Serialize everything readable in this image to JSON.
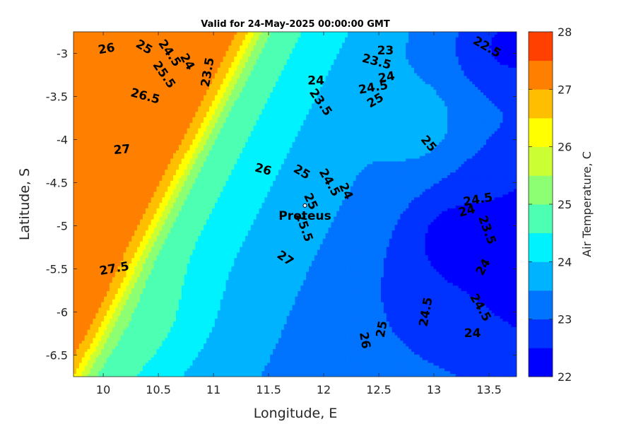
{
  "chart_data": {
    "type": "heatmap",
    "title": "Valid for 24-May-2025 00:00:00 GMT",
    "xlabel": "Longitude, E",
    "ylabel": "Latitude, S",
    "colorbar_label": "Air Temperature, C",
    "xlim": [
      9.73,
      13.75
    ],
    "ylim": [
      -6.75,
      -2.75
    ],
    "xticks": [
      10,
      10.5,
      11,
      11.5,
      12,
      12.5,
      13,
      13.5
    ],
    "xtick_labels": [
      "10",
      "10.5",
      "11",
      "11.5",
      "12",
      "12.5",
      "13",
      "13.5"
    ],
    "yticks": [
      -3,
      -3.5,
      -4,
      -4.5,
      -5,
      -5.5,
      -6,
      -6.5
    ],
    "ytick_labels": [
      "-3",
      "-3.5",
      "-4",
      "-4.5",
      "-5",
      "-5.5",
      "-6",
      "-6.5"
    ],
    "colorbar_range": [
      22,
      28
    ],
    "colorbar_ticks": [
      22,
      23,
      24,
      25,
      26,
      27,
      28
    ],
    "colorbar_tick_labels": [
      "22",
      "23",
      "24",
      "25",
      "26",
      "27",
      "28"
    ],
    "colormap": "jet",
    "contour_levels": [
      22,
      22.5,
      23,
      23.5,
      24,
      24.5,
      25,
      25.5,
      26,
      26.5,
      27,
      27.5,
      28
    ],
    "contour_colors": [
      "#0000ff",
      "#0033ff",
      "#0073ff",
      "#00b3ff",
      "#00f2ff",
      "#4dffb3",
      "#8cff73",
      "#ccff33",
      "#ffff00",
      "#ffbf00",
      "#ff8000",
      "#ff4000",
      "#ff0000"
    ],
    "station": {
      "name": "Proteus",
      "lon": 11.83,
      "lat": -4.88
    },
    "contour_labels": [
      {
        "text": "26",
        "lon": 10.03,
        "lat": -2.95,
        "angle": -10
      },
      {
        "text": "25",
        "lon": 10.37,
        "lat": -2.93,
        "angle": 30
      },
      {
        "text": "24.5",
        "lon": 10.6,
        "lat": -3.0,
        "angle": 55
      },
      {
        "text": "24",
        "lon": 10.76,
        "lat": -3.1,
        "angle": 60
      },
      {
        "text": "25.5",
        "lon": 10.55,
        "lat": -3.25,
        "angle": 55
      },
      {
        "text": "23.5",
        "lon": 10.95,
        "lat": -3.22,
        "angle": -80
      },
      {
        "text": "26.5",
        "lon": 10.38,
        "lat": -3.5,
        "angle": 15
      },
      {
        "text": "23",
        "lon": 12.56,
        "lat": -2.97,
        "angle": 0
      },
      {
        "text": "23.5",
        "lon": 12.48,
        "lat": -3.1,
        "angle": 15
      },
      {
        "text": "24",
        "lon": 12.57,
        "lat": -3.28,
        "angle": -10
      },
      {
        "text": "24.5",
        "lon": 12.45,
        "lat": -3.4,
        "angle": -10
      },
      {
        "text": "25",
        "lon": 12.47,
        "lat": -3.55,
        "angle": -30
      },
      {
        "text": "24",
        "lon": 11.93,
        "lat": -3.32,
        "angle": 0
      },
      {
        "text": "23.5",
        "lon": 11.97,
        "lat": -3.57,
        "angle": 55
      },
      {
        "text": "22.5",
        "lon": 13.48,
        "lat": -2.93,
        "angle": 30
      },
      {
        "text": "25",
        "lon": 12.95,
        "lat": -4.05,
        "angle": 50
      },
      {
        "text": "27",
        "lon": 10.17,
        "lat": -4.12,
        "angle": -5
      },
      {
        "text": "26",
        "lon": 11.45,
        "lat": -4.35,
        "angle": 15
      },
      {
        "text": "25",
        "lon": 11.8,
        "lat": -4.38,
        "angle": 30
      },
      {
        "text": "24.5",
        "lon": 12.05,
        "lat": -4.5,
        "angle": 60
      },
      {
        "text": "24",
        "lon": 12.2,
        "lat": -4.6,
        "angle": 65
      },
      {
        "text": "25",
        "lon": 11.88,
        "lat": -4.72,
        "angle": 65
      },
      {
        "text": "24.5",
        "lon": 13.4,
        "lat": -4.7,
        "angle": -10
      },
      {
        "text": "24",
        "lon": 13.3,
        "lat": -4.83,
        "angle": -15
      },
      {
        "text": "23.5",
        "lon": 13.48,
        "lat": -5.05,
        "angle": 70
      },
      {
        "text": "25.5",
        "lon": 11.82,
        "lat": -5.02,
        "angle": 70
      },
      {
        "text": "27",
        "lon": 11.65,
        "lat": -5.38,
        "angle": 35
      },
      {
        "text": "27.5",
        "lon": 10.1,
        "lat": -5.5,
        "angle": -10
      },
      {
        "text": "24",
        "lon": 13.45,
        "lat": -5.48,
        "angle": -60
      },
      {
        "text": "24.5",
        "lon": 12.93,
        "lat": -6.0,
        "angle": -80
      },
      {
        "text": "24.5",
        "lon": 13.42,
        "lat": -5.95,
        "angle": 60
      },
      {
        "text": "24",
        "lon": 13.35,
        "lat": -6.25,
        "angle": 0
      },
      {
        "text": "26",
        "lon": 12.37,
        "lat": -6.33,
        "angle": 80
      },
      {
        "text": "25",
        "lon": 12.53,
        "lat": -6.2,
        "angle": -80
      }
    ]
  }
}
